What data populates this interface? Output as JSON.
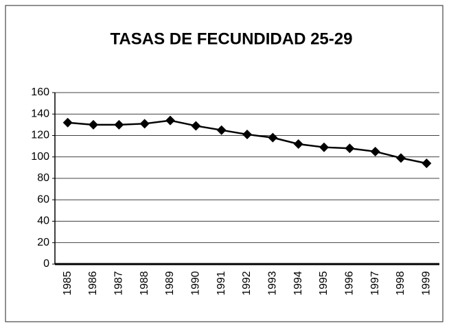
{
  "chart_data": {
    "type": "line",
    "title": "TASAS DE FECUNDIDAD  25-29",
    "categories": [
      "1985",
      "1986",
      "1987",
      "1988",
      "1989",
      "1990",
      "1991",
      "1992",
      "1993",
      "1994",
      "1995",
      "1996",
      "1997",
      "1998",
      "1999"
    ],
    "values": [
      132,
      130,
      130,
      131,
      134,
      129,
      125,
      121,
      118,
      112,
      109,
      108,
      105,
      99,
      94
    ],
    "color": "#000000",
    "ylim": [
      0,
      160
    ],
    "yticks": [
      0,
      20,
      40,
      60,
      80,
      100,
      120,
      140,
      160
    ],
    "grid": true
  }
}
